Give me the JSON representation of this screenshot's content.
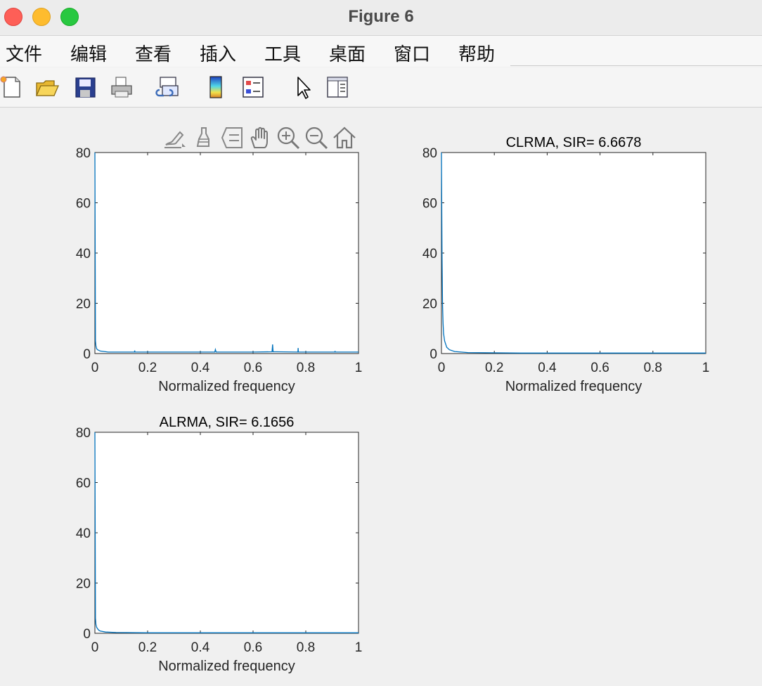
{
  "window": {
    "title": "Figure 6"
  },
  "menu": [
    "文件",
    "编辑",
    "查看",
    "插入",
    "工具",
    "桌面",
    "窗口",
    "帮助"
  ],
  "toolbar_icons": [
    "new-figure-icon",
    "open-file-icon",
    "save-icon",
    "print-icon",
    "link-plot-icon",
    "colorbar-icon",
    "legend-icon",
    "pointer-icon",
    "property-inspector-icon"
  ],
  "axes_toolbar_icons": [
    "brush-icon",
    "data-tips-icon",
    "data-cursor-icon",
    "pan-icon",
    "zoom-in-icon",
    "zoom-out-icon",
    "home-icon"
  ],
  "chart_data": [
    {
      "type": "line",
      "title": "",
      "xlabel": "Normalized frequency",
      "ylabel": "",
      "xlim": [
        0,
        1
      ],
      "ylim": [
        0,
        80
      ],
      "xticks": [
        "0",
        "0.2",
        "0.4",
        "0.6",
        "0.8",
        "1"
      ],
      "yticks": [
        "0",
        "20",
        "40",
        "60",
        "80"
      ],
      "color": "#0072bd",
      "series": [
        {
          "x": [
            0,
            0.002,
            0.004,
            0.006,
            0.01,
            0.02,
            0.05,
            0.15,
            0.151,
            0.152,
            0.27,
            0.455,
            0.457,
            0.46,
            0.6,
            0.672,
            0.674,
            0.676,
            0.69,
            0.77,
            0.771,
            0.772,
            0.91,
            0.911,
            0.912,
            1.0
          ],
          "y": [
            80,
            5,
            3,
            2,
            1.5,
            1,
            0.6,
            0.6,
            1.2,
            0.6,
            0.6,
            0.6,
            1.6,
            0.6,
            0.6,
            0.7,
            3.6,
            0.7,
            0.7,
            0.6,
            2.2,
            0.6,
            0.6,
            1.0,
            0.6,
            0.6
          ]
        }
      ]
    },
    {
      "type": "line",
      "title": "CLRMA, SIR= 6.6678",
      "xlabel": "Normalized frequency",
      "ylabel": "",
      "xlim": [
        0,
        1
      ],
      "ylim": [
        0,
        80
      ],
      "xticks": [
        "0",
        "0.2",
        "0.4",
        "0.6",
        "0.8",
        "1"
      ],
      "yticks": [
        "0",
        "20",
        "40",
        "60",
        "80"
      ],
      "color": "#0072bd",
      "series": [
        {
          "x": [
            0,
            0.002,
            0.004,
            0.006,
            0.008,
            0.012,
            0.02,
            0.03,
            0.05,
            0.1,
            0.3,
            0.6,
            1.0
          ],
          "y": [
            80,
            40,
            20,
            12,
            8,
            5,
            2.5,
            1.5,
            0.8,
            0.4,
            0.2,
            0.2,
            0.2
          ]
        }
      ]
    },
    {
      "type": "line",
      "title": "ALRMA, SIR= 6.1656",
      "xlabel": "Normalized frequency",
      "ylabel": "",
      "xlim": [
        0,
        1
      ],
      "ylim": [
        0,
        80
      ],
      "xticks": [
        "0",
        "0.2",
        "0.4",
        "0.6",
        "0.8",
        "1"
      ],
      "yticks": [
        "0",
        "20",
        "40",
        "60",
        "80"
      ],
      "color": "#0072bd",
      "series": [
        {
          "x": [
            0,
            0.002,
            0.004,
            0.006,
            0.01,
            0.015,
            0.02,
            0.04,
            0.08,
            0.2,
            0.5,
            1.0
          ],
          "y": [
            80,
            6,
            3.5,
            2.5,
            1.8,
            1.2,
            0.9,
            0.5,
            0.3,
            0.2,
            0.2,
            0.2
          ]
        }
      ]
    }
  ]
}
